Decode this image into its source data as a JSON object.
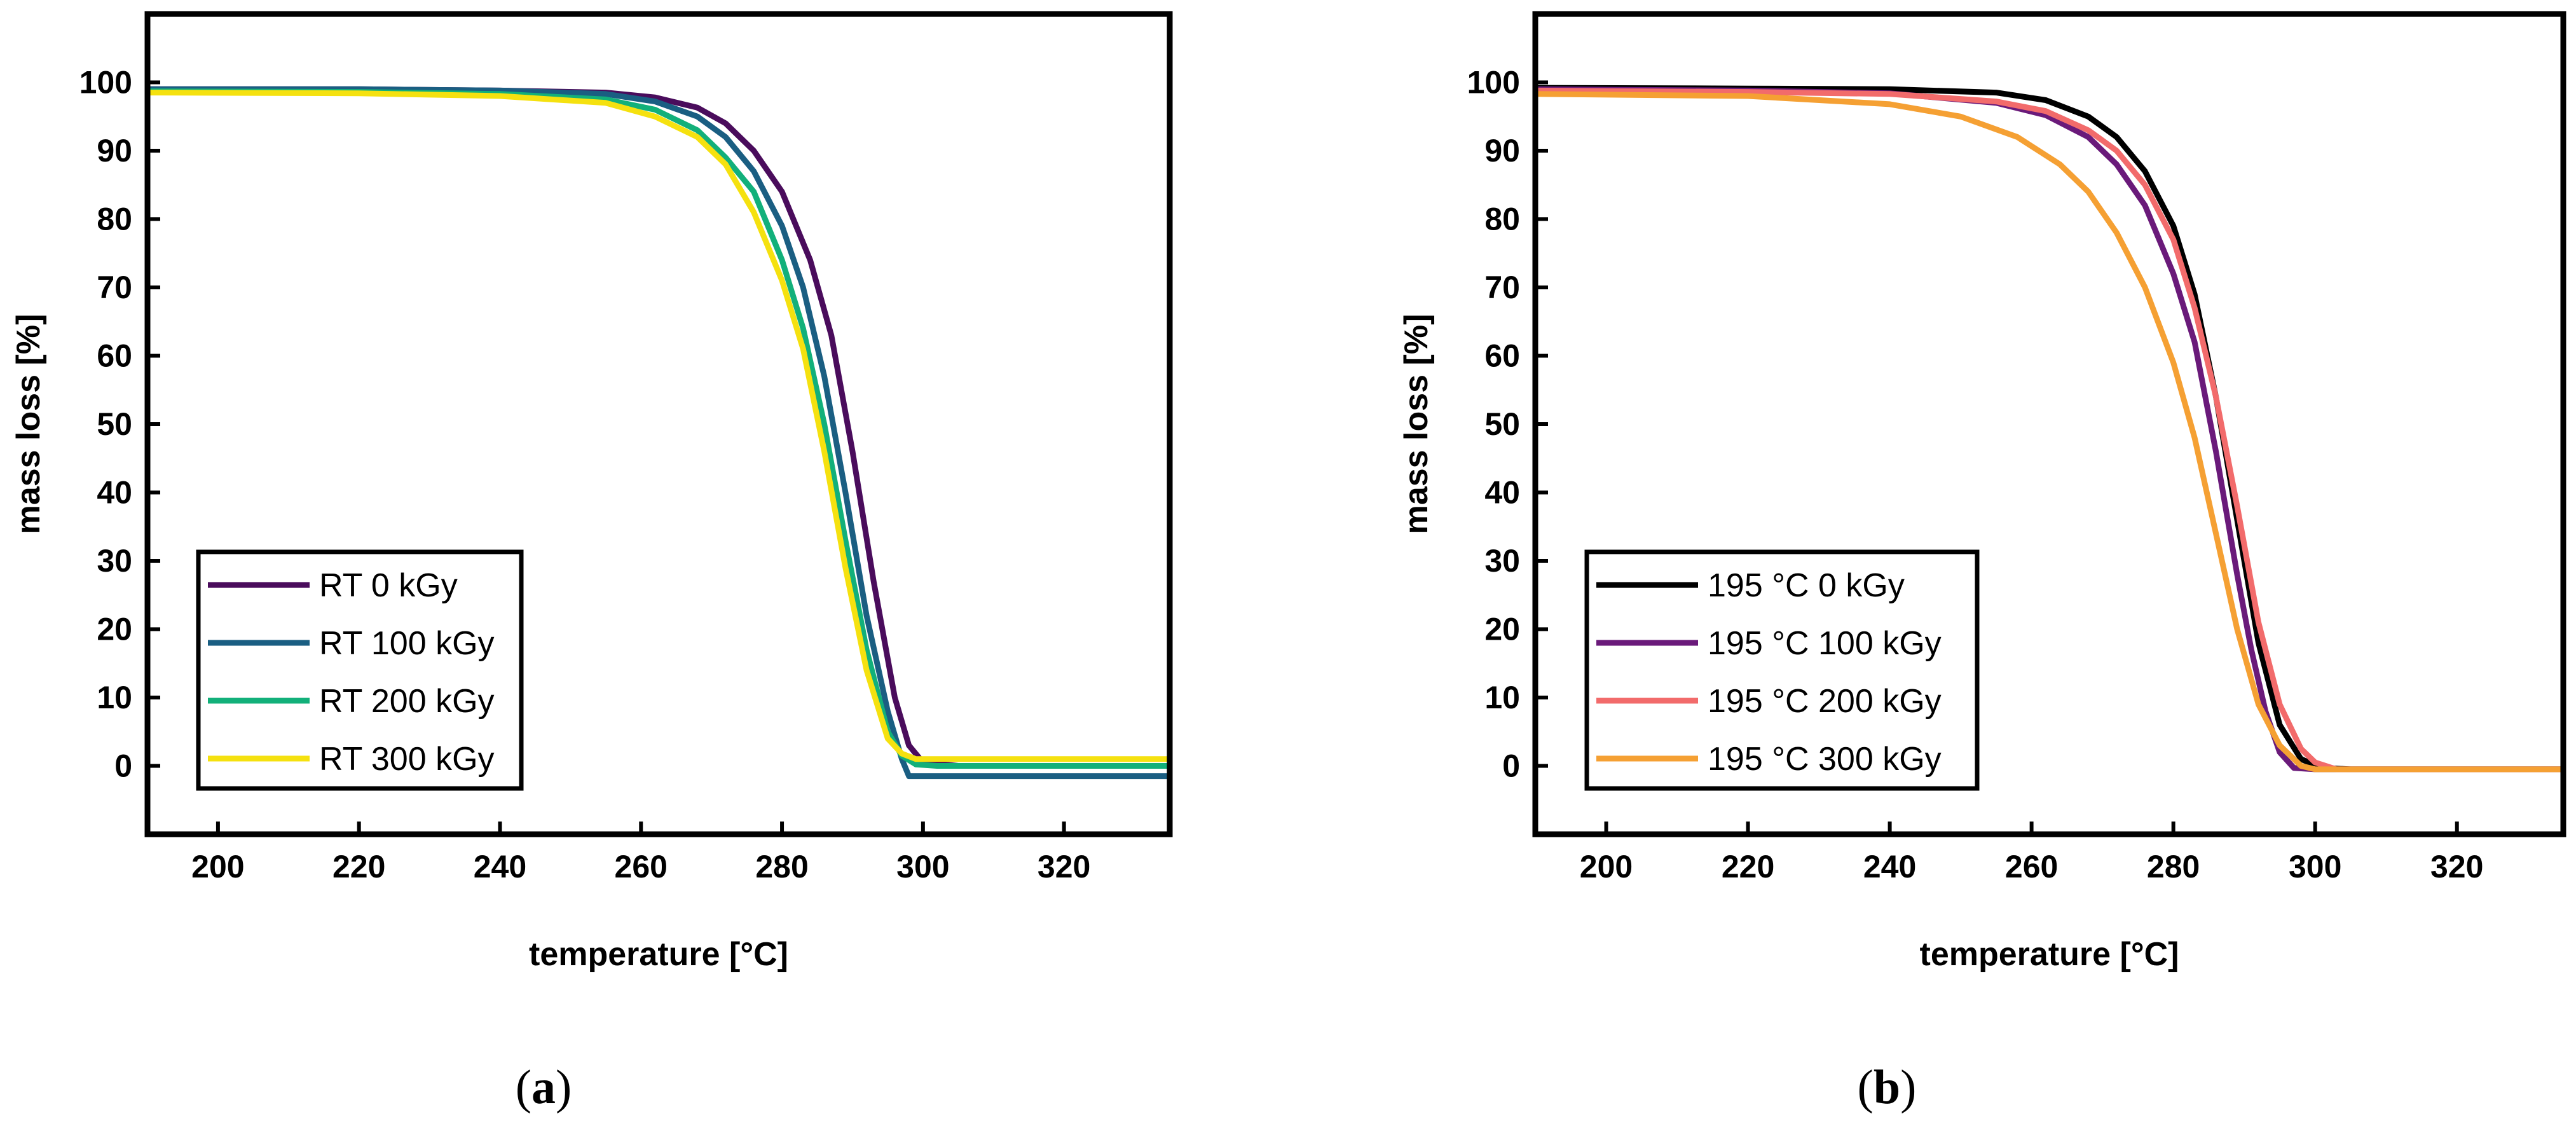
{
  "figure": {
    "panels": [
      {
        "caption_letter": "a"
      },
      {
        "caption_letter": "b"
      }
    ]
  },
  "chart_data": [
    {
      "type": "line",
      "panel": "a",
      "title": "",
      "xlabel": "temperature [°C]",
      "ylabel": "mass loss [%]",
      "xlim": [
        190,
        335
      ],
      "ylim": [
        -10,
        110
      ],
      "xticks": [
        200,
        220,
        240,
        260,
        280,
        300,
        320
      ],
      "yticks": [
        0,
        10,
        20,
        30,
        40,
        50,
        60,
        70,
        80,
        90,
        100
      ],
      "grid": false,
      "legend_position": "bottom-left",
      "series": [
        {
          "name": "RT 0 kGy",
          "color": "#4a0c5c",
          "x": [
            190,
            220,
            240,
            255,
            262,
            268,
            272,
            276,
            280,
            284,
            287,
            290,
            293,
            296,
            298,
            300,
            305,
            335
          ],
          "y": [
            99,
            99,
            98.8,
            98.5,
            97.8,
            96.3,
            94,
            90,
            84,
            74,
            63,
            46,
            27,
            10,
            3,
            0.5,
            0,
            0
          ]
        },
        {
          "name": "RT 100 kGy",
          "color": "#1a5e82",
          "x": [
            190,
            220,
            240,
            255,
            262,
            268,
            272,
            276,
            280,
            283,
            286,
            289,
            292,
            295,
            297,
            298,
            300,
            305,
            335
          ],
          "y": [
            99,
            99,
            98.8,
            98.3,
            97.2,
            95,
            92,
            87,
            79,
            70,
            57,
            40,
            22,
            8,
            1,
            -1.5,
            -1.5,
            -1.5,
            -1.5
          ]
        },
        {
          "name": "RT 200 kGy",
          "color": "#12b07a",
          "x": [
            190,
            220,
            240,
            255,
            262,
            268,
            272,
            276,
            280,
            283,
            286,
            289,
            292,
            295,
            297,
            299,
            302,
            335
          ],
          "y": [
            98.7,
            98.6,
            98.3,
            97.5,
            96,
            93,
            89,
            84,
            74,
            64,
            50,
            33,
            17,
            5,
            1.5,
            0.2,
            0,
            0
          ]
        },
        {
          "name": "RT 300 kGy",
          "color": "#f5e10f",
          "x": [
            190,
            220,
            240,
            255,
            262,
            268,
            272,
            276,
            280,
            283,
            286,
            289,
            292,
            295,
            297,
            299,
            302,
            335
          ],
          "y": [
            98.5,
            98.4,
            98,
            97,
            95,
            92,
            88,
            81,
            71,
            61,
            46,
            29,
            14,
            4,
            1.8,
            1,
            1,
            1
          ]
        }
      ]
    },
    {
      "type": "line",
      "panel": "b",
      "title": "",
      "xlabel": "temperature [°C]",
      "ylabel": "mass loss [%]",
      "xlim": [
        190,
        335
      ],
      "ylim": [
        -10,
        110
      ],
      "xticks": [
        200,
        220,
        240,
        260,
        280,
        300,
        320
      ],
      "yticks": [
        0,
        10,
        20,
        30,
        40,
        50,
        60,
        70,
        80,
        90,
        100
      ],
      "grid": false,
      "legend_position": "bottom-left",
      "series": [
        {
          "name": "195 °C 0 kGy",
          "color": "#000000",
          "x": [
            190,
            220,
            240,
            255,
            262,
            268,
            272,
            276,
            280,
            283,
            286,
            289,
            292,
            295,
            298,
            301,
            305,
            335
          ],
          "y": [
            99.2,
            99.1,
            99,
            98.5,
            97.4,
            95,
            92,
            87,
            79,
            69,
            54,
            36,
            18,
            6,
            1,
            -0.3,
            -0.5,
            -0.5
          ]
        },
        {
          "name": "195 °C 100 kGy",
          "color": "#6a1a7a",
          "x": [
            190,
            220,
            240,
            255,
            262,
            268,
            272,
            276,
            280,
            283,
            286,
            289,
            291,
            293,
            295,
            297,
            300,
            335
          ],
          "y": [
            99,
            98.8,
            98.4,
            97,
            95.2,
            92,
            88,
            82,
            72,
            62,
            46,
            28,
            17,
            8,
            2,
            -0.3,
            -0.5,
            -0.5
          ]
        },
        {
          "name": "195 °C 200 kGy",
          "color": "#f26b6b",
          "x": [
            190,
            220,
            240,
            255,
            262,
            268,
            272,
            276,
            280,
            283,
            286,
            289,
            292,
            295,
            298,
            300,
            303,
            335
          ],
          "y": [
            98.8,
            98.6,
            98.3,
            97.2,
            95.8,
            93,
            90,
            85,
            77,
            67,
            54,
            38,
            21,
            9,
            2.5,
            0.5,
            -0.5,
            -0.5
          ]
        },
        {
          "name": "195 °C 300 kGy",
          "color": "#f5a033",
          "x": [
            190,
            220,
            240,
            250,
            258,
            264,
            268,
            272,
            276,
            280,
            283,
            286,
            289,
            292,
            295,
            298,
            300,
            305,
            335
          ],
          "y": [
            98.3,
            98,
            96.8,
            95,
            92,
            88,
            84,
            78,
            70,
            59,
            48,
            34,
            20,
            9,
            3,
            0,
            -0.5,
            -0.5,
            -0.5
          ]
        }
      ]
    }
  ]
}
